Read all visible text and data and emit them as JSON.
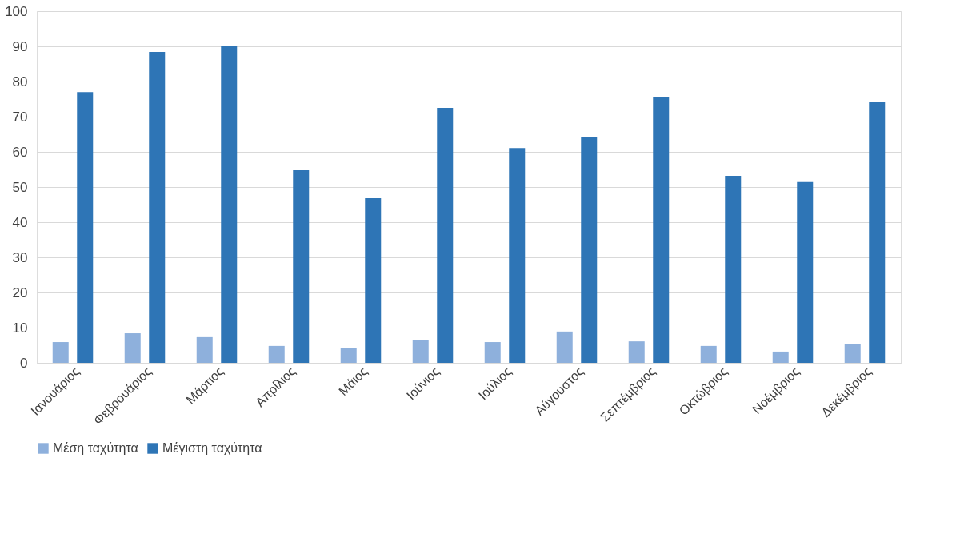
{
  "chart_data": {
    "type": "bar",
    "categories": [
      "Ιανουάριος",
      "Φεβρουάριος",
      "Μάρτιος",
      "Απρίλιος",
      "Μάιος",
      "Ιούνιος",
      "Ιούλιος",
      "Αύγουστος",
      "Σεπτέμβριος",
      "Οκτώβριος",
      "Νοέμβριος",
      "Δεκέμβριος"
    ],
    "series": [
      {
        "name": "Μέση ταχύτητα",
        "color": "#8eb0dc",
        "values": [
          5.9,
          8.4,
          7.3,
          4.8,
          4.3,
          6.4,
          5.9,
          8.9,
          6.1,
          4.8,
          3.2,
          5.2
        ]
      },
      {
        "name": "Μέγιστη ταχύτητα",
        "color": "#2e75b6",
        "values": [
          77.0,
          88.4,
          90.0,
          54.8,
          46.8,
          72.5,
          61.1,
          64.3,
          75.5,
          53.2,
          51.4,
          74.1
        ]
      }
    ],
    "ylim": [
      0,
      100
    ],
    "yticks": [
      0,
      10,
      20,
      30,
      40,
      50,
      60,
      70,
      80,
      90,
      100
    ],
    "grid": "y",
    "legend": "bottom"
  }
}
